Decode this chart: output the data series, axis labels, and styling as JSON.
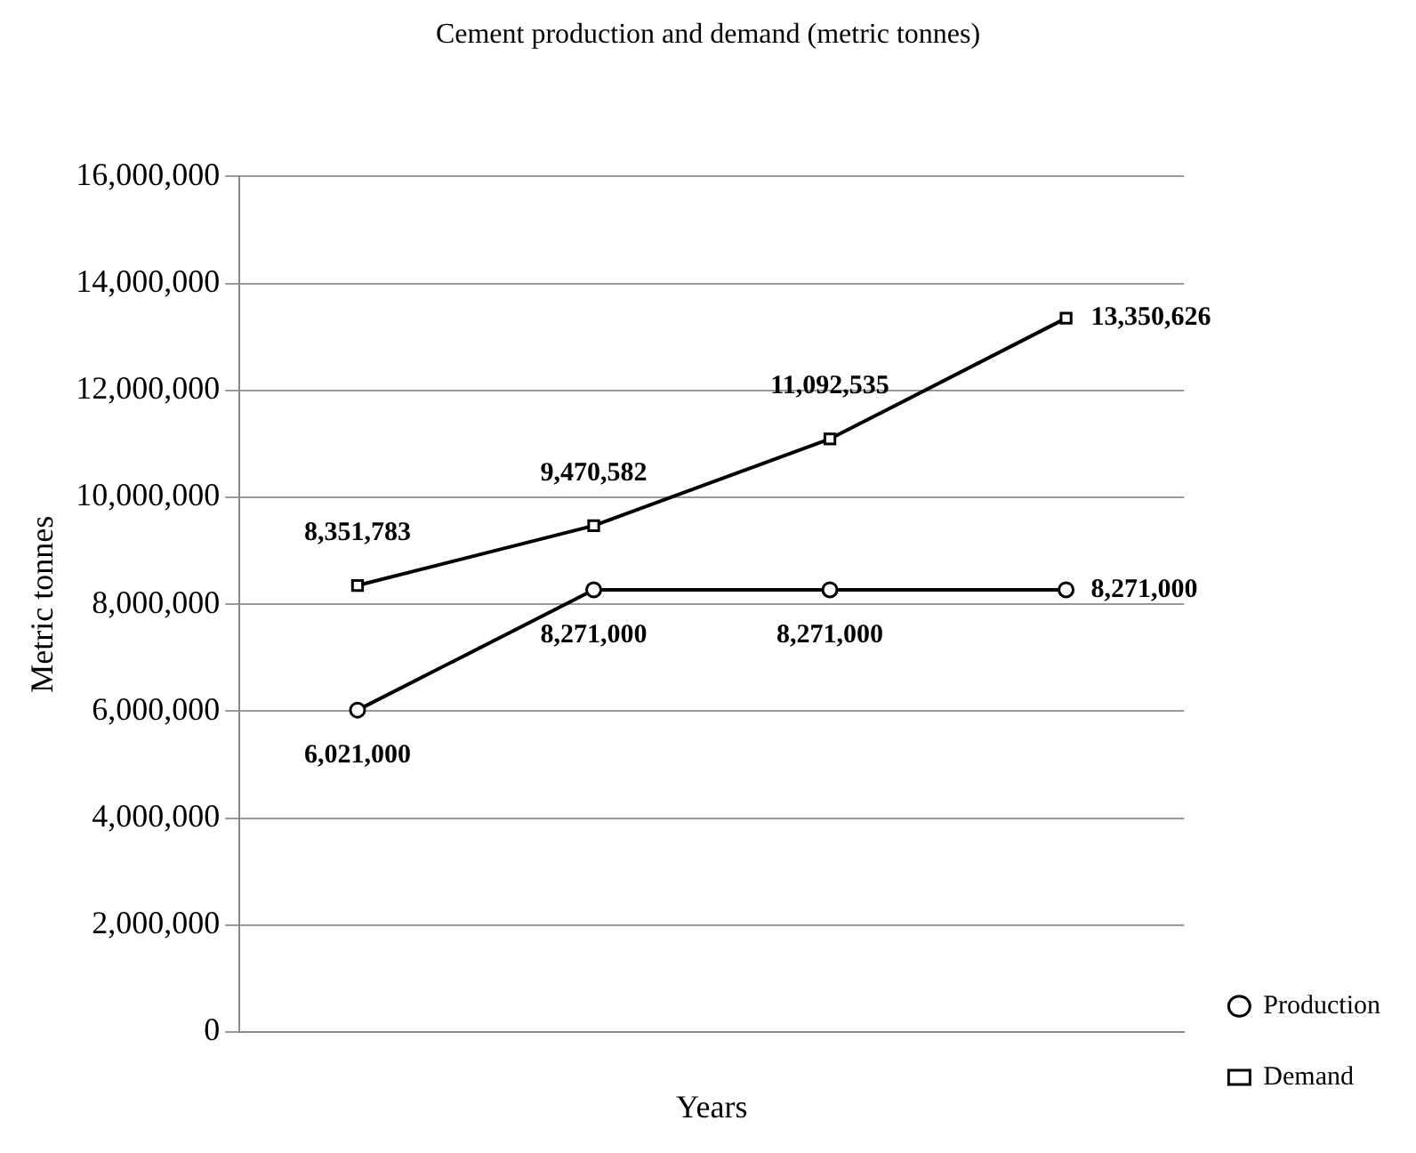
{
  "chart_data": {
    "type": "line",
    "title": "Cement production and demand (metric tonnes)",
    "xlabel": "Years",
    "ylabel": "Metric tonnes",
    "categories": [
      null,
      null,
      null,
      null
    ],
    "series": [
      {
        "name": "Production",
        "color": "#000000",
        "marker": "circle",
        "values": [
          6021000,
          8271000,
          8271000,
          8271000
        ],
        "value_labels": [
          "6,021,000",
          "8,271,000",
          "8,271,000",
          "8,271,000"
        ]
      },
      {
        "name": "Demand",
        "color": "#000000",
        "marker": "square",
        "values": [
          8351783,
          9470582,
          11092535,
          13350626
        ],
        "value_labels": [
          "8,351,783",
          "9,470,582",
          "11,092,535",
          "13,350,626"
        ]
      }
    ],
    "ylim": [
      0,
      16000000
    ],
    "yticks": [
      {
        "value": 0,
        "label": "0"
      },
      {
        "value": 2000000,
        "label": "2,000,000"
      },
      {
        "value": 4000000,
        "label": "4,000,000"
      },
      {
        "value": 6000000,
        "label": "6,000,000"
      },
      {
        "value": 8000000,
        "label": "8,000,000"
      },
      {
        "value": 10000000,
        "label": "10,000,000"
      },
      {
        "value": 12000000,
        "label": "12,000,000"
      },
      {
        "value": 14000000,
        "label": "14,000,000"
      },
      {
        "value": 16000000,
        "label": "16,000,000"
      }
    ],
    "grid": "y",
    "legend": "bottom right",
    "line_style": "solid"
  }
}
